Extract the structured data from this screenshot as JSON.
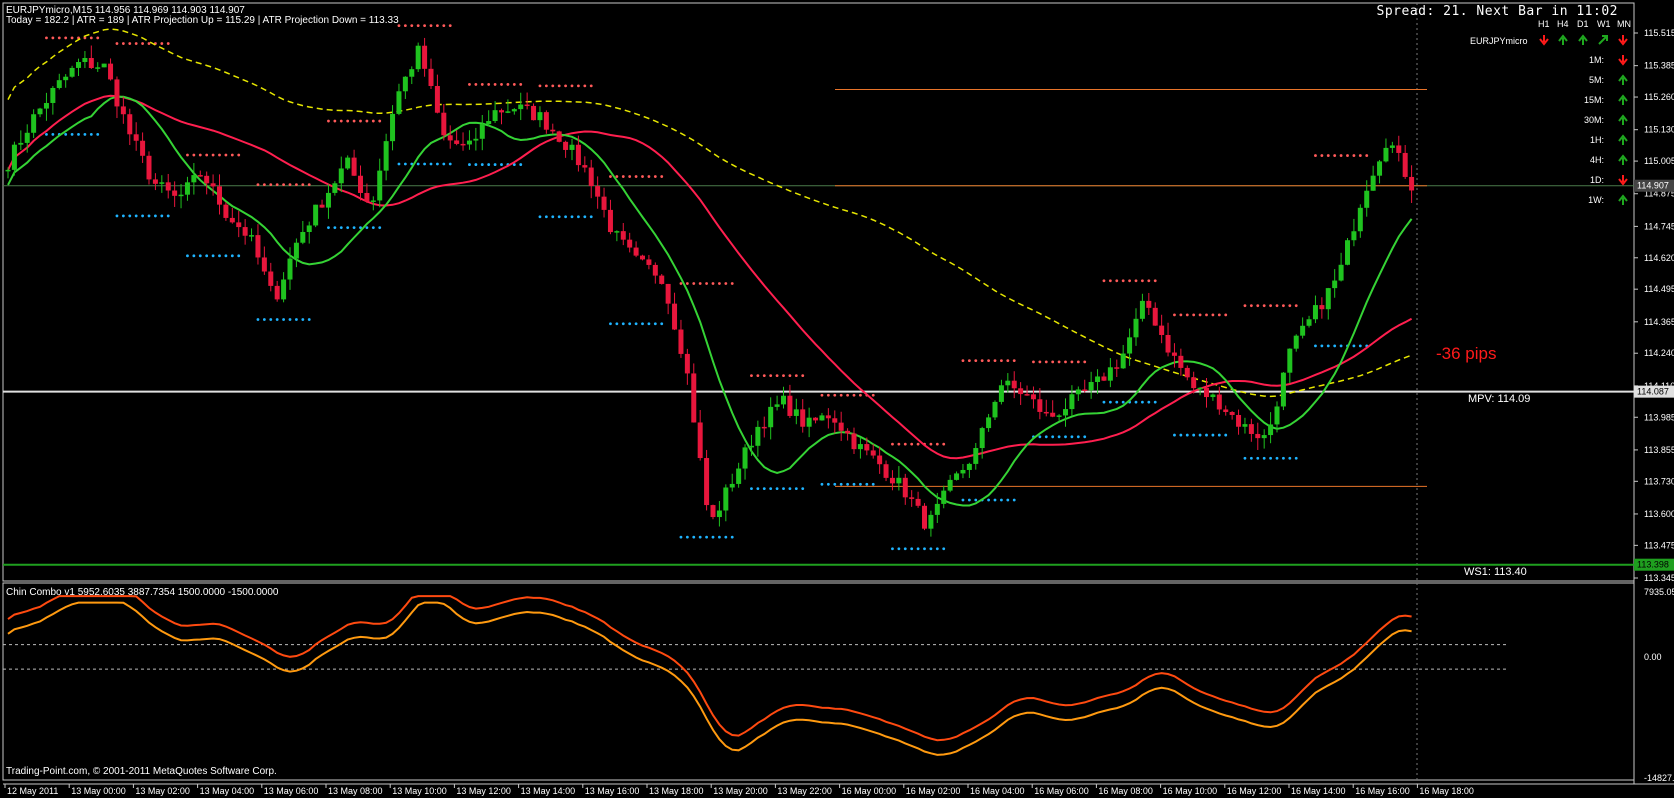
{
  "header": {
    "symbol_line": "EURJPYmicro,M15  114.956 114.969 114.903 114.907",
    "atr_line": "Today = 182.2  |  ATR = 189  |  ATR Projection Up = 115.29  |  ATR Projection Down = 113.33",
    "spread_text": "Spread: 21. Next Bar in 11:02"
  },
  "trend_panel": {
    "symbol": "EURJPYmicro",
    "columns": [
      "H1",
      "H4",
      "D1",
      "W1",
      "MN"
    ],
    "main_row": [
      "down",
      "up",
      "up",
      "up-diag",
      "down"
    ],
    "rows": [
      {
        "label": "1M:",
        "dir": "down"
      },
      {
        "label": "5M:",
        "dir": "up"
      },
      {
        "label": "15M:",
        "dir": "up"
      },
      {
        "label": "30M:",
        "dir": "up"
      },
      {
        "label": "1H:",
        "dir": "up"
      },
      {
        "label": "4H:",
        "dir": "up"
      },
      {
        "label": "1D:",
        "dir": "down"
      },
      {
        "label": "1W:",
        "dir": "up"
      }
    ],
    "colors": {
      "up": "#1fa81f",
      "down": "#ff1a1a"
    }
  },
  "annotations": {
    "pips": "-36 pips",
    "mpv": "MPV:  114.09",
    "ws1": "WS1:  113.40"
  },
  "price_axis": {
    "labels": [
      "115.515",
      "115.385",
      "115.260",
      "115.130",
      "115.005",
      "114.875",
      "114.745",
      "114.620",
      "114.495",
      "114.365",
      "114.240",
      "114.110",
      "113.985",
      "113.855",
      "113.730",
      "113.600",
      "113.475",
      "113.345"
    ],
    "current_price": "114.907",
    "mpv_level": "114.087",
    "ws1_level": "113.398"
  },
  "time_axis": [
    "12 May 2011",
    "13 May 00:00",
    "13 May 02:00",
    "13 May 04:00",
    "13 May 06:00",
    "13 May 08:00",
    "13 May 10:00",
    "13 May 12:00",
    "13 May 14:00",
    "13 May 16:00",
    "13 May 18:00",
    "13 May 20:00",
    "13 May 22:00",
    "16 May 00:00",
    "16 May 02:00",
    "16 May 04:00",
    "16 May 06:00",
    "16 May 08:00",
    "16 May 10:00",
    "16 May 12:00",
    "16 May 14:00",
    "16 May 16:00",
    "16 May 18:00"
  ],
  "indicator": {
    "title": "Chin Combo v1 5952.6035 3887.7354 1500.0000 -1500.0000",
    "axis_labels": [
      "7935.05",
      "0.00",
      "-14827.93"
    ]
  },
  "footer": {
    "copyright": "Trading-Point.com, © 2001-2011 MetaQuotes Software Corp."
  },
  "colors": {
    "bull": "#1fc31f",
    "bear": "#e8163c",
    "ma_red": "#ff1f4f",
    "ma_green": "#35d335",
    "ma_yellow": "#e6e600",
    "res_dots": "#ff5a5a",
    "sup_dots": "#1fb4ff",
    "atr_lines": "#e8742a",
    "osc1": "#ff4a10",
    "osc2": "#ff9a10"
  },
  "chart_data": {
    "type": "candlestick",
    "symbol": "EURJPYmicro",
    "timeframe": "M15",
    "last_bar": {
      "open": 114.956,
      "high": 114.969,
      "low": 114.903,
      "close": 114.907
    },
    "atr_projection_up": 115.29,
    "atr_projection_down": 113.33,
    "mpv": 114.09,
    "ws1": 113.4,
    "ylim": [
      113.345,
      115.515
    ],
    "close_path": [
      115.0,
      115.17,
      115.3,
      115.4,
      115.38,
      115.12,
      114.92,
      114.85,
      114.96,
      114.8,
      114.7,
      114.45,
      114.7,
      114.85,
      115.0,
      114.82,
      115.25,
      115.45,
      115.1,
      115.05,
      115.2,
      115.22,
      115.18,
      115.08,
      114.95,
      114.72,
      114.6,
      114.55,
      114.2,
      113.55,
      113.75,
      113.95,
      114.05,
      113.95,
      114.0,
      113.88,
      113.8,
      113.7,
      113.55,
      113.72,
      113.85,
      114.12,
      114.08,
      113.98,
      114.05,
      114.12,
      114.22,
      114.45,
      114.25,
      114.1,
      114.05,
      113.95,
      113.9,
      114.25,
      114.4,
      114.55,
      114.88,
      115.1,
      114.91
    ]
  }
}
